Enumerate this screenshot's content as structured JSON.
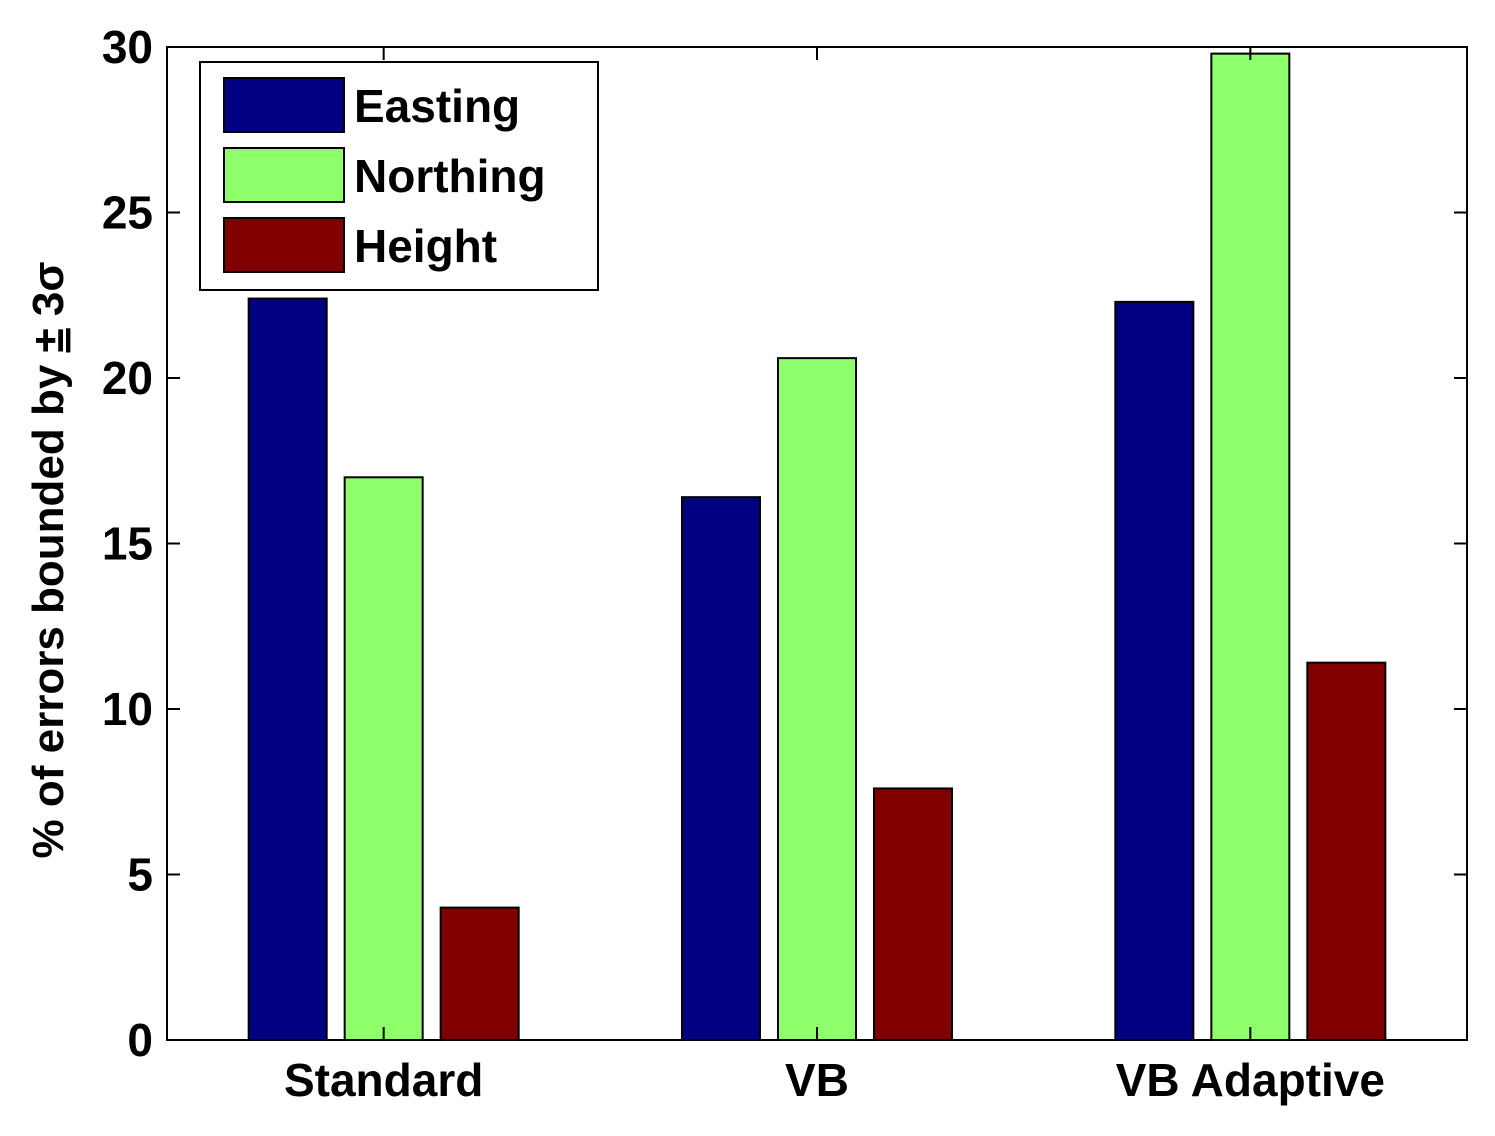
{
  "chart_data": {
    "type": "bar",
    "title": "",
    "xlabel": "",
    "ylabel_prefix": "% of errors bounded by ",
    "ylabel_pm": "±",
    "ylabel_suffix": " 3σ",
    "categories": [
      "Standard",
      "VB",
      "VB Adaptive"
    ],
    "series": [
      {
        "name": "Easting",
        "color": "#000080",
        "values": [
          22.4,
          16.4,
          22.3
        ]
      },
      {
        "name": "Northing",
        "color": "#8CFF6B",
        "values": [
          17.0,
          20.6,
          29.8
        ]
      },
      {
        "name": "Height",
        "color": "#800000",
        "values": [
          4.0,
          7.6,
          11.4
        ]
      }
    ],
    "ylim": [
      0,
      30
    ],
    "yticks": [
      "0",
      "5",
      "10",
      "15",
      "20",
      "25",
      "30"
    ],
    "grid": false,
    "legend_position": "top-left"
  }
}
